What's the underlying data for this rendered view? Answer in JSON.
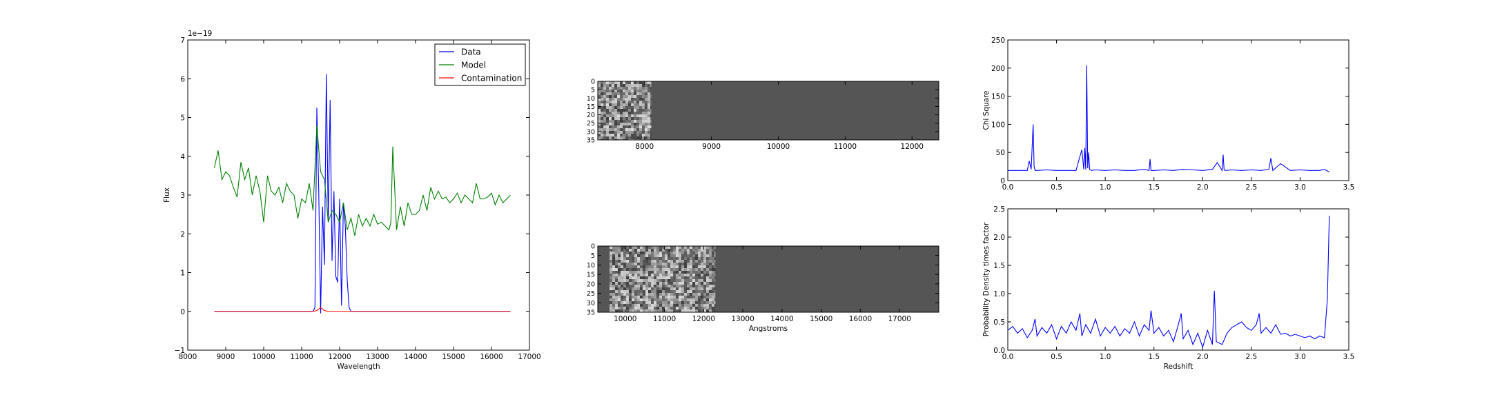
{
  "chart_data": [
    {
      "type": "line",
      "xlabel": "Wavelength",
      "ylabel": "Flux",
      "offset_text": "1e−19",
      "xlim": [
        8000,
        17000
      ],
      "ylim": [
        -1,
        7
      ],
      "xticks": [
        "8000",
        "9000",
        "10000",
        "11000",
        "12000",
        "13000",
        "14000",
        "15000",
        "16000",
        "17000"
      ],
      "yticks": [
        "−1",
        "0",
        "1",
        "2",
        "3",
        "4",
        "5",
        "6",
        "7"
      ],
      "legend": "top-right",
      "series": [
        {
          "name": "Data",
          "color": "#0000ff",
          "x": [
            8700,
            11300,
            11350,
            11400,
            11450,
            11500,
            11550,
            11600,
            11650,
            11700,
            11750,
            11800,
            11850,
            11900,
            11950,
            12000,
            12050,
            12100,
            12150,
            12200,
            12250,
            12300,
            12350,
            12400,
            16500
          ],
          "y": [
            0,
            0,
            0.1,
            5.25,
            3.1,
            -0.05,
            2.7,
            1.2,
            6.12,
            2.3,
            5.45,
            1.3,
            3.1,
            0.9,
            0.75,
            2.9,
            0.15,
            2.8,
            2.2,
            0.8,
            0.1,
            0,
            0,
            0,
            0
          ]
        },
        {
          "name": "Model",
          "color": "#008000",
          "x": [
            8700,
            8800,
            8900,
            9000,
            9100,
            9200,
            9300,
            9400,
            9500,
            9600,
            9700,
            9800,
            9900,
            10000,
            10100,
            10200,
            10300,
            10400,
            10500,
            10600,
            10700,
            10800,
            10900,
            11000,
            11100,
            11200,
            11300,
            11400,
            11500,
            11600,
            11700,
            11800,
            11900,
            12000,
            12100,
            12200,
            12300,
            12400,
            12500,
            12600,
            12700,
            12800,
            12900,
            13000,
            13100,
            13200,
            13300,
            13350,
            13400,
            13500,
            13600,
            13700,
            13800,
            13900,
            14000,
            14100,
            14200,
            14300,
            14400,
            14500,
            14600,
            14700,
            14800,
            14900,
            15000,
            15100,
            15200,
            15300,
            15400,
            15500,
            15600,
            15700,
            15800,
            15900,
            16000,
            16100,
            16200,
            16300,
            16400,
            16500
          ],
          "y": [
            3.7,
            4.15,
            3.4,
            3.6,
            3.5,
            3.2,
            2.95,
            3.85,
            3.4,
            3.7,
            3.0,
            3.5,
            3.1,
            2.3,
            3.5,
            3.1,
            3.0,
            3.2,
            2.8,
            3.3,
            3.1,
            3.0,
            2.4,
            2.9,
            2.8,
            3.3,
            2.6,
            4.8,
            3.6,
            3.4,
            2.3,
            2.6,
            2.5,
            2.3,
            2.8,
            2.1,
            2.4,
            1.95,
            2.5,
            2.2,
            2.4,
            2.2,
            2.5,
            2.25,
            2.3,
            2.2,
            2.1,
            2.3,
            4.25,
            2.1,
            2.7,
            2.2,
            2.8,
            2.5,
            2.5,
            2.6,
            3.0,
            2.6,
            3.2,
            2.9,
            3.1,
            2.9,
            2.95,
            2.8,
            2.9,
            3.05,
            2.8,
            3.0,
            2.9,
            2.8,
            3.3,
            2.9,
            2.9,
            2.95,
            3.05,
            2.75,
            3.0,
            2.8,
            2.9,
            3.0
          ]
        },
        {
          "name": "Contamination",
          "color": "#ff0000",
          "x": [
            8700,
            11300,
            11400,
            11500,
            11550,
            11600,
            11700,
            12000,
            12300,
            16500
          ],
          "y": [
            0,
            0,
            0.02,
            0.1,
            0.05,
            0.02,
            0,
            0,
            0,
            0
          ]
        }
      ]
    },
    {
      "type": "heatmap",
      "title": "",
      "xlim": [
        7300,
        12400
      ],
      "ylim": [
        0,
        35
      ],
      "xticks": [
        "8000",
        "9000",
        "10000",
        "11000",
        "12000"
      ],
      "yticks": [
        "0",
        "5",
        "10",
        "15",
        "20",
        "25",
        "30",
        "35"
      ],
      "data_x_range": [
        7300,
        8100
      ],
      "background": "#555555"
    },
    {
      "type": "heatmap",
      "xlabel": "Angstroms",
      "xlim": [
        9300,
        18000
      ],
      "ylim": [
        0,
        35
      ],
      "xticks": [
        "10000",
        "11000",
        "12000",
        "13000",
        "14000",
        "15000",
        "16000",
        "17000"
      ],
      "yticks": [
        "0",
        "5",
        "10",
        "15",
        "20",
        "25",
        "30",
        "35"
      ],
      "data_x_range": [
        9600,
        12300
      ],
      "background": "#555555"
    },
    {
      "type": "line",
      "xlabel": "",
      "ylabel": "Chi Square",
      "xlim": [
        0,
        3.5
      ],
      "ylim": [
        0,
        250
      ],
      "xticks": [
        "0.0",
        "0.5",
        "1.0",
        "1.5",
        "2.0",
        "2.5",
        "3.0",
        "3.5"
      ],
      "yticks": [
        "0",
        "50",
        "100",
        "150",
        "200",
        "250"
      ],
      "series": [
        {
          "color": "#0000ff",
          "x": [
            0.0,
            0.1,
            0.2,
            0.22,
            0.24,
            0.26,
            0.27,
            0.28,
            0.3,
            0.4,
            0.5,
            0.6,
            0.7,
            0.76,
            0.78,
            0.79,
            0.8,
            0.81,
            0.82,
            0.83,
            0.84,
            0.86,
            0.9,
            1.0,
            1.1,
            1.2,
            1.3,
            1.4,
            1.45,
            1.46,
            1.47,
            1.5,
            1.6,
            1.7,
            1.8,
            1.9,
            2.0,
            2.1,
            2.15,
            2.2,
            2.21,
            2.22,
            2.23,
            2.3,
            2.4,
            2.5,
            2.6,
            2.68,
            2.7,
            2.72,
            2.8,
            2.9,
            3.0,
            3.1,
            3.2,
            3.25,
            3.3
          ],
          "y": [
            18,
            18,
            18,
            35,
            20,
            100,
            25,
            18,
            18,
            19,
            18,
            18,
            18,
            55,
            20,
            58,
            20,
            205,
            22,
            50,
            20,
            18,
            19,
            18,
            19,
            18,
            18,
            20,
            18,
            38,
            18,
            18,
            19,
            18,
            20,
            19,
            18,
            20,
            32,
            18,
            46,
            20,
            18,
            19,
            18,
            19,
            18,
            20,
            40,
            18,
            30,
            18,
            19,
            18,
            18,
            20,
            15
          ]
        }
      ]
    },
    {
      "type": "line",
      "xlabel": "Redshift",
      "ylabel": "Probability Density times factor",
      "xlim": [
        0,
        3.5
      ],
      "ylim": [
        0,
        2.5
      ],
      "xticks": [
        "0.0",
        "0.5",
        "1.0",
        "1.5",
        "2.0",
        "2.5",
        "3.0",
        "3.5"
      ],
      "yticks": [
        "0.0",
        "0.5",
        "1.0",
        "1.5",
        "2.0",
        "2.5"
      ],
      "series": [
        {
          "color": "#0000ff",
          "x": [
            0.0,
            0.05,
            0.1,
            0.15,
            0.2,
            0.25,
            0.28,
            0.3,
            0.35,
            0.4,
            0.45,
            0.5,
            0.55,
            0.6,
            0.65,
            0.7,
            0.74,
            0.76,
            0.8,
            0.85,
            0.9,
            0.95,
            1.0,
            1.05,
            1.1,
            1.15,
            1.2,
            1.25,
            1.3,
            1.35,
            1.4,
            1.45,
            1.47,
            1.5,
            1.55,
            1.6,
            1.65,
            1.7,
            1.75,
            1.78,
            1.8,
            1.85,
            1.9,
            1.95,
            2.0,
            2.05,
            2.1,
            2.12,
            2.14,
            2.2,
            2.25,
            2.3,
            2.35,
            2.4,
            2.45,
            2.5,
            2.55,
            2.58,
            2.6,
            2.65,
            2.7,
            2.75,
            2.8,
            2.85,
            2.9,
            2.95,
            3.0,
            3.05,
            3.1,
            3.15,
            3.2,
            3.25,
            3.28,
            3.3
          ],
          "y": [
            0.35,
            0.42,
            0.3,
            0.38,
            0.22,
            0.35,
            0.55,
            0.25,
            0.4,
            0.3,
            0.45,
            0.2,
            0.42,
            0.3,
            0.5,
            0.35,
            0.65,
            0.25,
            0.45,
            0.3,
            0.55,
            0.25,
            0.4,
            0.3,
            0.42,
            0.25,
            0.38,
            0.3,
            0.5,
            0.25,
            0.45,
            0.35,
            0.7,
            0.3,
            0.4,
            0.25,
            0.35,
            0.15,
            0.45,
            0.65,
            0.2,
            0.35,
            0.1,
            0.3,
            0.05,
            0.35,
            0.1,
            1.05,
            0.15,
            0.1,
            0.3,
            0.4,
            0.45,
            0.5,
            0.4,
            0.35,
            0.45,
            0.65,
            0.3,
            0.4,
            0.3,
            0.45,
            0.28,
            0.3,
            0.25,
            0.28,
            0.25,
            0.22,
            0.25,
            0.2,
            0.25,
            0.22,
            0.9,
            2.38
          ]
        }
      ]
    }
  ]
}
